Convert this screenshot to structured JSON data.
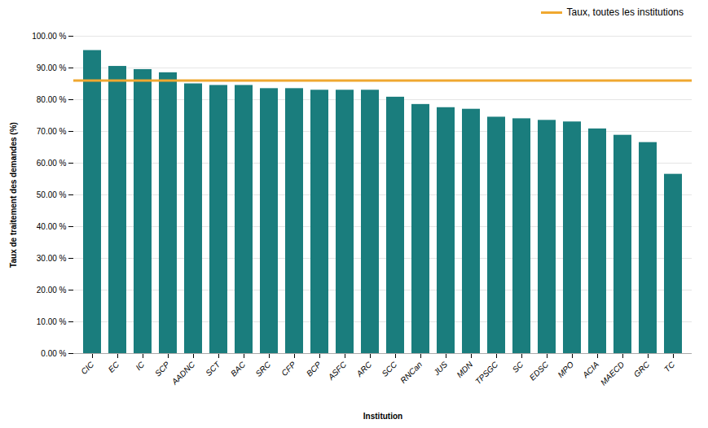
{
  "chart_data": {
    "type": "bar",
    "categories": [
      "CIC",
      "EC",
      "IC",
      "SCP",
      "AADNC",
      "SCT",
      "BAC",
      "SRC",
      "CFP",
      "BCP",
      "ASFC",
      "ARC",
      "SCC",
      "RNCan",
      "JUS",
      "MDN",
      "TPSGC",
      "SC",
      "EDSC",
      "MPO",
      "ACIA",
      "MAECD",
      "GRC",
      "TC"
    ],
    "values": [
      95.5,
      90.5,
      89.5,
      88.5,
      85.0,
      84.5,
      84.5,
      83.5,
      83.5,
      83.0,
      83.0,
      83.0,
      80.8,
      78.5,
      77.5,
      77.0,
      74.5,
      74.0,
      73.5,
      73.0,
      70.8,
      68.8,
      66.5,
      56.5
    ],
    "color": "#1a7d7d",
    "reference_line": {
      "value": 86.0,
      "label": "Taux, toutes les institutions",
      "color": "#f0a830"
    },
    "x_label": "Institution",
    "y_label": "Taux de traitement des demandes (%)",
    "ylim": [
      0,
      100
    ],
    "yticks": [
      {
        "value": 0,
        "label": "0.00 %"
      },
      {
        "value": 10,
        "label": "10.00 %"
      },
      {
        "value": 20,
        "label": "20.00 %"
      },
      {
        "value": 30,
        "label": "30.00 %"
      },
      {
        "value": 40,
        "label": "40.00 %"
      },
      {
        "value": 50,
        "label": "50.00 %"
      },
      {
        "value": 60,
        "label": "60.00 %"
      },
      {
        "value": 70,
        "label": "70.00 %"
      },
      {
        "value": 80,
        "label": "80.00 %"
      },
      {
        "value": 90,
        "label": "90.00 %"
      },
      {
        "value": 100,
        "label": "100.00 %"
      }
    ],
    "grid": true,
    "legend": "upper right"
  }
}
